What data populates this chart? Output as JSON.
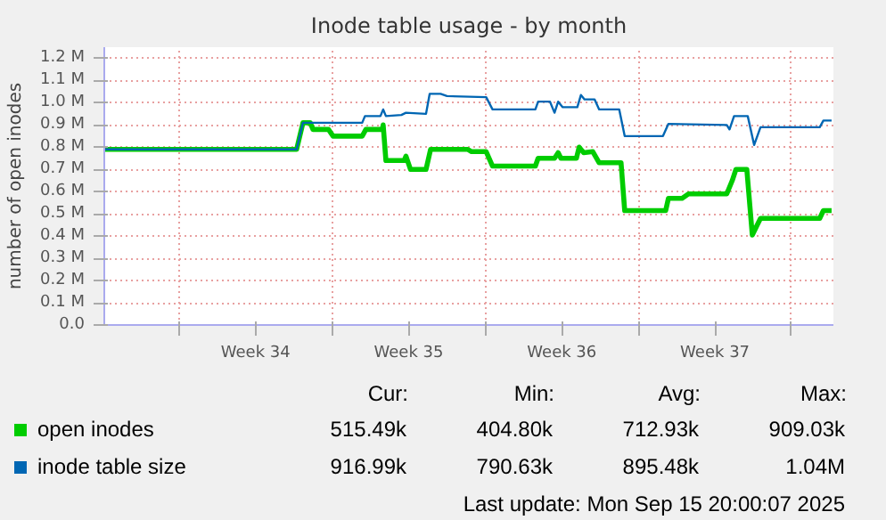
{
  "chart_data": {
    "type": "line",
    "title": "Inode table usage - by month",
    "ylabel": "number of open inodes",
    "xlim": [
      "2025-08-13T12:00",
      "2025-09-15T20:00"
    ],
    "ylim": [
      0,
      1.25
    ],
    "xticks": [
      {
        "value": "2025-08-16T22:00",
        "label": null
      },
      {
        "value": "2025-08-20T10:00",
        "label": "Week 34"
      },
      {
        "value": "2025-08-23T22:00",
        "label": null
      },
      {
        "value": "2025-08-27T10:00",
        "label": "Week 35"
      },
      {
        "value": "2025-08-30T22:00",
        "label": null
      },
      {
        "value": "2025-09-03T10:00",
        "label": "Week 36"
      },
      {
        "value": "2025-09-06T22:00",
        "label": null
      },
      {
        "value": "2025-09-10T10:00",
        "label": "Week 37"
      },
      {
        "value": "2025-09-13T22:00",
        "label": null
      }
    ],
    "yticks": [
      {
        "value": 0,
        "label": "0.0"
      },
      {
        "value": 0.1,
        "label": "0.1 M"
      },
      {
        "value": 0.2,
        "label": "0.2 M"
      },
      {
        "value": 0.3,
        "label": "0.3 M"
      },
      {
        "value": 0.4,
        "label": "0.4 M"
      },
      {
        "value": 0.5,
        "label": "0.5 M"
      },
      {
        "value": 0.6,
        "label": "0.6 M"
      },
      {
        "value": 0.7,
        "label": "0.7 M"
      },
      {
        "value": 0.8,
        "label": "0.8 M"
      },
      {
        "value": 0.9,
        "label": "0.9 M"
      },
      {
        "value": 1.0,
        "label": "1.0 M"
      },
      {
        "value": 1.1,
        "label": "1.1 M"
      },
      {
        "value": 1.2,
        "label": "1.2 M"
      }
    ],
    "grid": true,
    "legend": "bottom",
    "marker": "none",
    "line_style": "solid",
    "series": [
      {
        "name": "open inodes",
        "color": "#00cc00",
        "x": [
          "2025-08-13T12:00",
          "2025-08-22T07:00",
          "2025-08-22T14:00",
          "2025-08-22T22:00",
          "2025-08-23T01:00",
          "2025-08-23T18:00",
          "2025-08-23T23:00",
          "2025-08-25T07:00",
          "2025-08-25T11:00",
          "2025-08-26T05:00",
          "2025-08-26T06:00",
          "2025-08-26T09:00",
          "2025-08-27T05:00",
          "2025-08-27T07:00",
          "2025-08-27T12:00",
          "2025-08-28T05:00",
          "2025-08-28T10:00",
          "2025-08-30T03:00",
          "2025-08-30T07:00",
          "2025-08-30T23:00",
          "2025-08-31T06:00",
          "2025-09-02T05:00",
          "2025-09-02T08:00",
          "2025-09-03T02:00",
          "2025-09-03T06:00",
          "2025-09-03T09:00",
          "2025-09-04T02:00",
          "2025-09-04T05:00",
          "2025-09-04T10:00",
          "2025-09-04T20:00",
          "2025-09-05T03:00",
          "2025-09-06T03:00",
          "2025-09-06T07:00",
          "2025-09-08T04:00",
          "2025-09-08T07:00",
          "2025-09-08T22:00",
          "2025-09-09T05:00",
          "2025-09-10T23:00",
          "2025-09-11T05:00",
          "2025-09-11T09:00",
          "2025-09-11T21:00",
          "2025-09-12T03:00",
          "2025-09-12T12:00",
          "2025-09-15T05:00",
          "2025-09-15T09:00",
          "2025-09-15T18:00"
        ],
        "values": [
          0.79,
          0.79,
          0.91,
          0.91,
          0.88,
          0.88,
          0.85,
          0.85,
          0.88,
          0.88,
          0.9,
          0.74,
          0.74,
          0.76,
          0.7,
          0.7,
          0.79,
          0.79,
          0.78,
          0.78,
          0.715,
          0.715,
          0.75,
          0.75,
          0.775,
          0.75,
          0.75,
          0.8,
          0.775,
          0.78,
          0.73,
          0.73,
          0.515,
          0.515,
          0.57,
          0.57,
          0.59,
          0.59,
          0.65,
          0.7,
          0.7,
          0.405,
          0.48,
          0.48,
          0.515,
          0.515
        ]
      },
      {
        "name": "inode table size",
        "color": "#0066b3",
        "x": [
          "2025-08-13T12:00",
          "2025-08-22T07:00",
          "2025-08-22T14:00",
          "2025-08-25T07:00",
          "2025-08-25T10:00",
          "2025-08-26T03:00",
          "2025-08-26T06:00",
          "2025-08-26T09:00",
          "2025-08-27T02:00",
          "2025-08-27T07:00",
          "2025-08-28T05:00",
          "2025-08-28T09:00",
          "2025-08-28T21:00",
          "2025-08-29T04:00",
          "2025-08-30T23:00",
          "2025-08-31T06:00",
          "2025-09-02T05:00",
          "2025-09-02T08:00",
          "2025-09-02T21:00",
          "2025-09-03T02:00",
          "2025-09-03T06:00",
          "2025-09-03T11:00",
          "2025-09-04T03:00",
          "2025-09-04T07:00",
          "2025-09-04T11:00",
          "2025-09-04T22:00",
          "2025-09-05T03:00",
          "2025-09-06T01:00",
          "2025-09-06T07:00",
          "2025-09-08T01:00",
          "2025-09-08T07:00",
          "2025-09-10T23:00",
          "2025-09-11T02:00",
          "2025-09-11T07:00",
          "2025-09-11T22:00",
          "2025-09-12T05:00",
          "2025-09-12T12:00",
          "2025-09-15T05:00",
          "2025-09-15T09:00",
          "2025-09-15T18:00"
        ],
        "values": [
          0.79,
          0.79,
          0.91,
          0.91,
          0.94,
          0.94,
          0.97,
          0.94,
          0.945,
          0.955,
          0.95,
          1.04,
          1.04,
          1.03,
          1.025,
          0.97,
          0.97,
          1.005,
          1.005,
          0.955,
          1.005,
          0.98,
          0.98,
          1.035,
          1.015,
          1.015,
          0.97,
          0.97,
          0.85,
          0.85,
          0.905,
          0.9,
          0.88,
          0.94,
          0.94,
          0.81,
          0.89,
          0.89,
          0.92,
          0.92
        ]
      }
    ],
    "annotations": [
      "Cur:",
      "Min:",
      "Avg:",
      "Max:",
      "515.49k",
      "404.80k",
      "712.93k",
      "909.03k",
      "916.99k",
      "790.63k",
      "895.48k",
      "1.04M",
      "Last update: Mon Sep 15 20:00:07 2025"
    ]
  }
}
